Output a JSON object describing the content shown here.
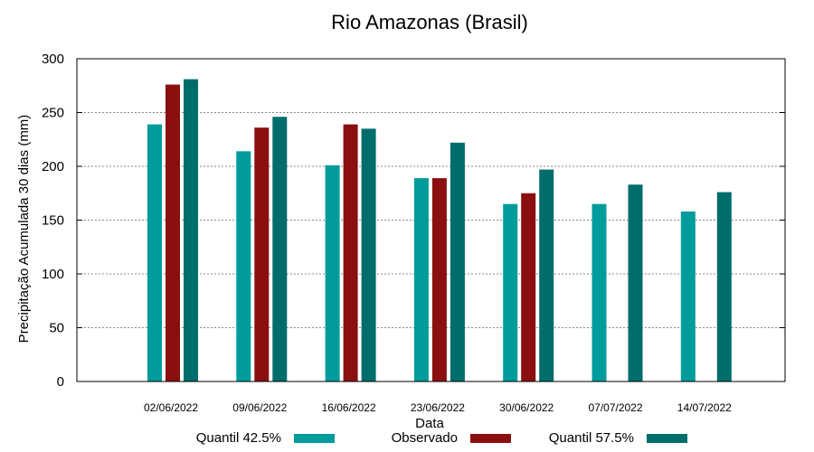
{
  "chart_data": {
    "type": "bar",
    "title": "Rio Amazonas (Brasil)",
    "xlabel": "Data",
    "ylabel": "Precipitação Acumulada 30 dias (mm)",
    "ylim": [
      0,
      300
    ],
    "yticks": [
      "0",
      "50",
      "100",
      "150",
      "200",
      "250",
      "300"
    ],
    "grid": true,
    "legend_position": "bottom",
    "categories": [
      "02/06/2022",
      "09/06/2022",
      "16/06/2022",
      "23/06/2022",
      "30/06/2022",
      "07/07/2022",
      "14/07/2022"
    ],
    "series": [
      {
        "name": "Quantil 42.5%",
        "color": "#009b9b",
        "values": [
          239,
          214,
          201,
          189,
          165,
          165,
          158
        ]
      },
      {
        "name": "Observado",
        "color": "#8c0f0f",
        "values": [
          276,
          236,
          239,
          189,
          175,
          null,
          null
        ]
      },
      {
        "name": "Quantil 57.5%",
        "color": "#006d6d",
        "values": [
          281,
          246,
          235,
          222,
          197,
          183,
          176
        ]
      }
    ]
  }
}
